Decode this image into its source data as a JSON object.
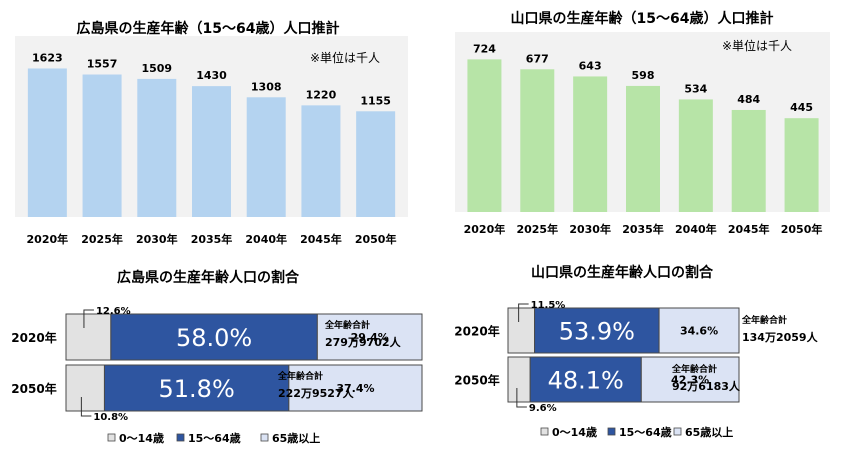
{
  "colors": {
    "hiroshima_bar": "#b4d3f0",
    "yamaguchi_bar": "#b7e4a7",
    "plot_bg": "#f2f2f2",
    "seg_young": "#e2e2e2",
    "seg_working": "#2e55a0",
    "seg_elderly": "#dbe3f4",
    "seg_border": "#4a4a4a"
  },
  "chart_data": [
    {
      "type": "bar",
      "title": "広島県の生産年齢（15～64歳）人口推計",
      "unit_note": "※単位は千人",
      "categories": [
        "2020年",
        "2025年",
        "2030年",
        "2035年",
        "2040年",
        "2045年",
        "2050年"
      ],
      "values": [
        1623,
        1557,
        1509,
        1430,
        1308,
        1220,
        1155
      ],
      "ylim": [
        0,
        1650
      ],
      "grid": false
    },
    {
      "type": "bar",
      "title": "山口県の生産年齢（15～64歳）人口推計",
      "unit_note": "※単位は千人",
      "categories": [
        "2020年",
        "2025年",
        "2030年",
        "2035年",
        "2040年",
        "2045年",
        "2050年"
      ],
      "values": [
        724,
        677,
        643,
        598,
        534,
        484,
        445
      ],
      "ylim": [
        0,
        740
      ],
      "grid": false
    },
    {
      "type": "bar",
      "stacked": "percent",
      "orientation": "horizontal",
      "title": "広島県の生産年齢人口の割合",
      "categories": [
        "2020年",
        "2050年"
      ],
      "series": [
        {
          "name": "0～14歳",
          "values": [
            12.6,
            10.8
          ]
        },
        {
          "name": "15～64歳",
          "values": [
            58.0,
            51.8
          ]
        },
        {
          "name": "65歳以上",
          "values": [
            29.4,
            37.4
          ]
        }
      ],
      "value_labels": {
        "young": [
          "12.6%",
          "10.8%"
        ],
        "working": [
          "58.0%",
          "51.8%"
        ],
        "elderly": [
          "29.4%",
          "37.4%"
        ]
      },
      "totals": [
        {
          "label": "全年齢合計",
          "value": "279万9702人"
        },
        {
          "label": "全年齢合計",
          "value": "222万9527人"
        }
      ],
      "legend": [
        "0～14歳",
        "15～64歳",
        "65歳以上"
      ]
    },
    {
      "type": "bar",
      "stacked": "percent",
      "orientation": "horizontal",
      "title": "山口県の生産年齢人口の割合",
      "categories": [
        "2020年",
        "2050年"
      ],
      "series": [
        {
          "name": "0～14歳",
          "values": [
            11.5,
            9.6
          ]
        },
        {
          "name": "15～64歳",
          "values": [
            53.9,
            48.1
          ]
        },
        {
          "name": "65歳以上",
          "values": [
            34.6,
            42.3
          ]
        }
      ],
      "value_labels": {
        "young": [
          "11.5%",
          "9.6%"
        ],
        "working": [
          "53.9%",
          "48.1%"
        ],
        "elderly": [
          "34.6%",
          "42.3%"
        ]
      },
      "totals": [
        {
          "label": "全年齢合計",
          "value": "134万2059人"
        },
        {
          "label": "全年齢合計",
          "value": "92万6183人"
        }
      ],
      "legend": [
        "0～14歳",
        "15～64歳",
        "65歳以上"
      ]
    }
  ]
}
